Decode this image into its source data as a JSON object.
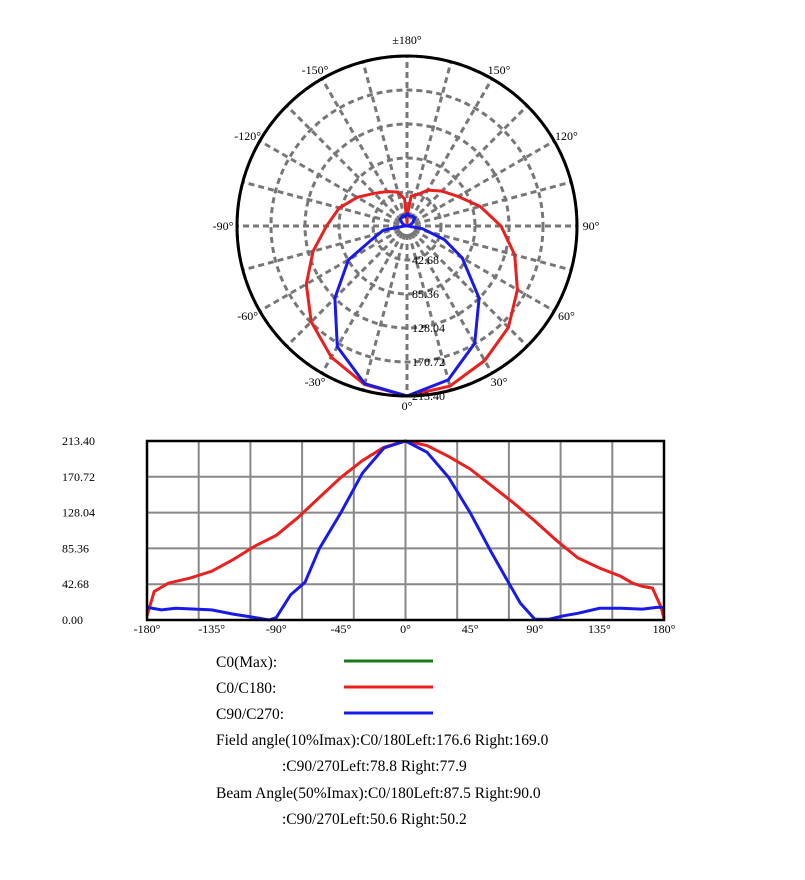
{
  "chart_data": [
    {
      "type": "polar",
      "angle_labels": [
        "±180°",
        "150°",
        "120°",
        "90°",
        "60°",
        "30°",
        "0°",
        "-30°",
        "-60°",
        "-90°",
        "-120°",
        "-150°"
      ],
      "radial_labels": [
        "42.68",
        "85.36",
        "128.04",
        "170.72",
        "213.40"
      ],
      "rmax": 213.4,
      "grid": true,
      "series_ref": "same as linear chart"
    },
    {
      "type": "line",
      "xlim": [
        -180,
        180
      ],
      "ylim": [
        0,
        213.4
      ],
      "grid": true,
      "x_tick_labels": [
        "-180°",
        "-135°",
        "-90°",
        "-45°",
        "0°",
        "45°",
        "90°",
        "135°",
        "180°"
      ],
      "y_tick_labels": [
        "213.40",
        "170.72",
        "128.04",
        "85.36",
        "42.68",
        "0.00"
      ],
      "series": [
        {
          "name": "C0/C180",
          "color": "#e8201e",
          "x": [
            -180,
            -175,
            -165,
            -150,
            -135,
            -120,
            -105,
            -90,
            -75,
            -60,
            -45,
            -30,
            -15,
            0,
            15,
            30,
            45,
            60,
            75,
            90,
            105,
            120,
            135,
            150,
            158,
            165,
            172,
            178,
            180
          ],
          "y": [
            5,
            34,
            44,
            50,
            58,
            72,
            88,
            101,
            122,
            146,
            170,
            190,
            206,
            213.4,
            208,
            195,
            180,
            160,
            140,
            118,
            95,
            74,
            62,
            52,
            44,
            40,
            38,
            15,
            2
          ]
        },
        {
          "name": "C90/C270",
          "color": "#1a1ae8",
          "x": [
            -180,
            -170,
            -160,
            -135,
            -120,
            -105,
            -95,
            -90,
            -80,
            -70,
            -60,
            -45,
            -30,
            -15,
            0,
            15,
            30,
            45,
            60,
            70,
            80,
            90,
            100,
            110,
            120,
            135,
            150,
            165,
            175,
            180
          ],
          "y": [
            15,
            12,
            14,
            12,
            7,
            3,
            0,
            3,
            30,
            45,
            85,
            128,
            175,
            205,
            213.4,
            200,
            170,
            128,
            80,
            50,
            20,
            1,
            1,
            5,
            8,
            14,
            14,
            13,
            15,
            15
          ]
        }
      ]
    }
  ],
  "legend": [
    {
      "label": "C0(Max):",
      "color": "#1a7a1a"
    },
    {
      "label": "C0/C180:",
      "color": "#e8201e"
    },
    {
      "label": "C90/C270:",
      "color": "#1a1ae8"
    }
  ],
  "info": {
    "field1": "Field angle(10%Imax):C0/180Left:176.6 Right:169.0",
    "field2": ":C90/270Left:78.8 Right:77.9",
    "beam1": "Beam Angle(50%Imax):C0/180Left:87.5 Right:90.0",
    "beam2": ":C90/270Left:50.6 Right:50.2"
  }
}
